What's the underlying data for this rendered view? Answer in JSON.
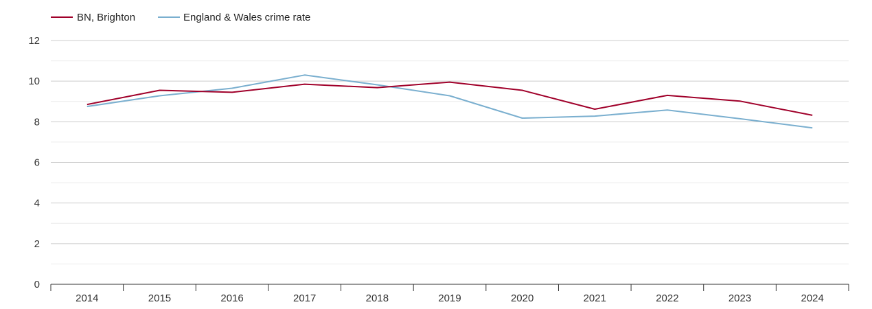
{
  "chart_data": {
    "type": "line",
    "categories": [
      "2014",
      "2015",
      "2016",
      "2017",
      "2018",
      "2019",
      "2020",
      "2021",
      "2022",
      "2023",
      "2024"
    ],
    "series": [
      {
        "name": "BN, Brighton",
        "color": "#a0002a",
        "values": [
          8.85,
          9.55,
          9.45,
          9.85,
          9.68,
          9.95,
          9.55,
          8.62,
          9.3,
          9.02,
          8.32
        ]
      },
      {
        "name": "England & Wales crime rate",
        "color": "#7aafcf",
        "values": [
          8.75,
          9.28,
          9.65,
          10.3,
          9.82,
          9.28,
          8.18,
          8.28,
          8.58,
          8.15,
          7.7
        ]
      }
    ],
    "ylim": [
      0,
      12
    ],
    "yticks": [
      "0",
      "2",
      "4",
      "6",
      "8",
      "10",
      "12"
    ],
    "grid": true,
    "legend_position": "top-left"
  }
}
